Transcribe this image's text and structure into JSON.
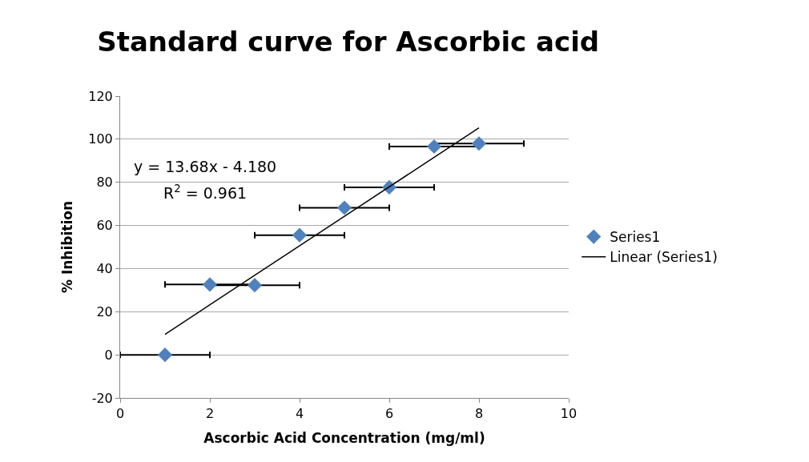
{
  "chart_data": {
    "type": "scatter",
    "title": "Standard curve for Ascorbic acid",
    "xlabel": "Ascorbic Acid Concentration (mg/ml)",
    "ylabel": "% Inhibition",
    "x": [
      1,
      2,
      3,
      4,
      5,
      6,
      7,
      8
    ],
    "series": [
      {
        "name": "Series1",
        "color": "#4f81bd",
        "marker": "diamond",
        "values": [
          0,
          32.6,
          32.3,
          55.5,
          68.2,
          77.7,
          96.6,
          98.0
        ],
        "xerrors": [
          1,
          1,
          1,
          1,
          1,
          1,
          1,
          1
        ]
      },
      {
        "name": "Linear (Series1)",
        "type": "line",
        "color": "#000000",
        "marker": "none",
        "line_style": "solid",
        "x": [
          1,
          8
        ],
        "values": [
          9.5,
          105.3
        ]
      }
    ],
    "annotations": [
      "y = 13.68x - 4.180",
      "R$^{2}$ = 0.961"
    ],
    "xlim": [
      0,
      10
    ],
    "xticks": [
      0,
      2,
      4,
      6,
      8,
      10
    ],
    "ylim": [
      -20,
      120
    ],
    "yticks": [
      -20,
      0,
      20,
      40,
      60,
      80,
      100,
      120
    ],
    "grid": "y",
    "legend": "right"
  }
}
